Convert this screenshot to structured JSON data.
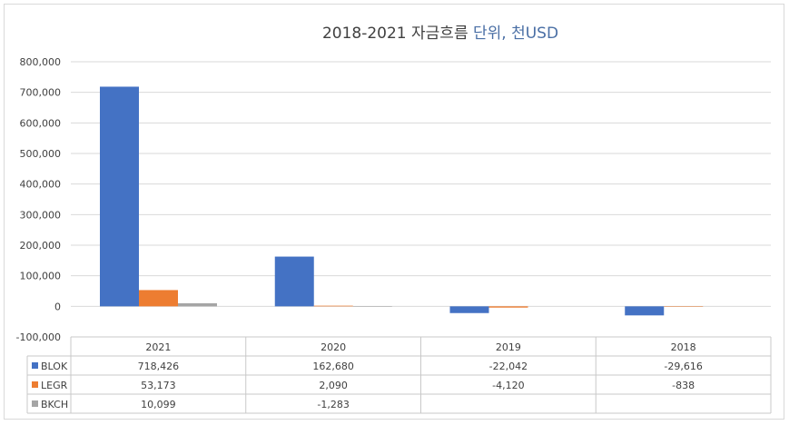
{
  "chart_data": {
    "type": "bar",
    "title_parts": [
      "2018-2021 자금흐름 ",
      "단위, 천USD"
    ],
    "categories": [
      "2021",
      "2020",
      "2019",
      "2018"
    ],
    "series": [
      {
        "name": "BLOK",
        "color": "#4472c4",
        "values": [
          718426,
          162680,
          -22042,
          -29616
        ],
        "labels": [
          "718,426",
          "162,680",
          "-22,042",
          "-29,616"
        ]
      },
      {
        "name": "LEGR",
        "color": "#ed7d31",
        "values": [
          53173,
          2090,
          -4120,
          -838
        ],
        "labels": [
          "53,173",
          "2,090",
          "-4,120",
          "-838"
        ]
      },
      {
        "name": "BKCH",
        "color": "#a5a5a5",
        "values": [
          10099,
          -1283,
          null,
          null
        ],
        "labels": [
          "10,099",
          "-1,283",
          "",
          ""
        ]
      }
    ],
    "y_ticks": [
      "800,000",
      "700,000",
      "600,000",
      "500,000",
      "400,000",
      "300,000",
      "200,000",
      "100,000",
      "0",
      "-100,000"
    ],
    "ylim": [
      -100000,
      800000
    ],
    "grid": true,
    "legend": "data-table"
  }
}
